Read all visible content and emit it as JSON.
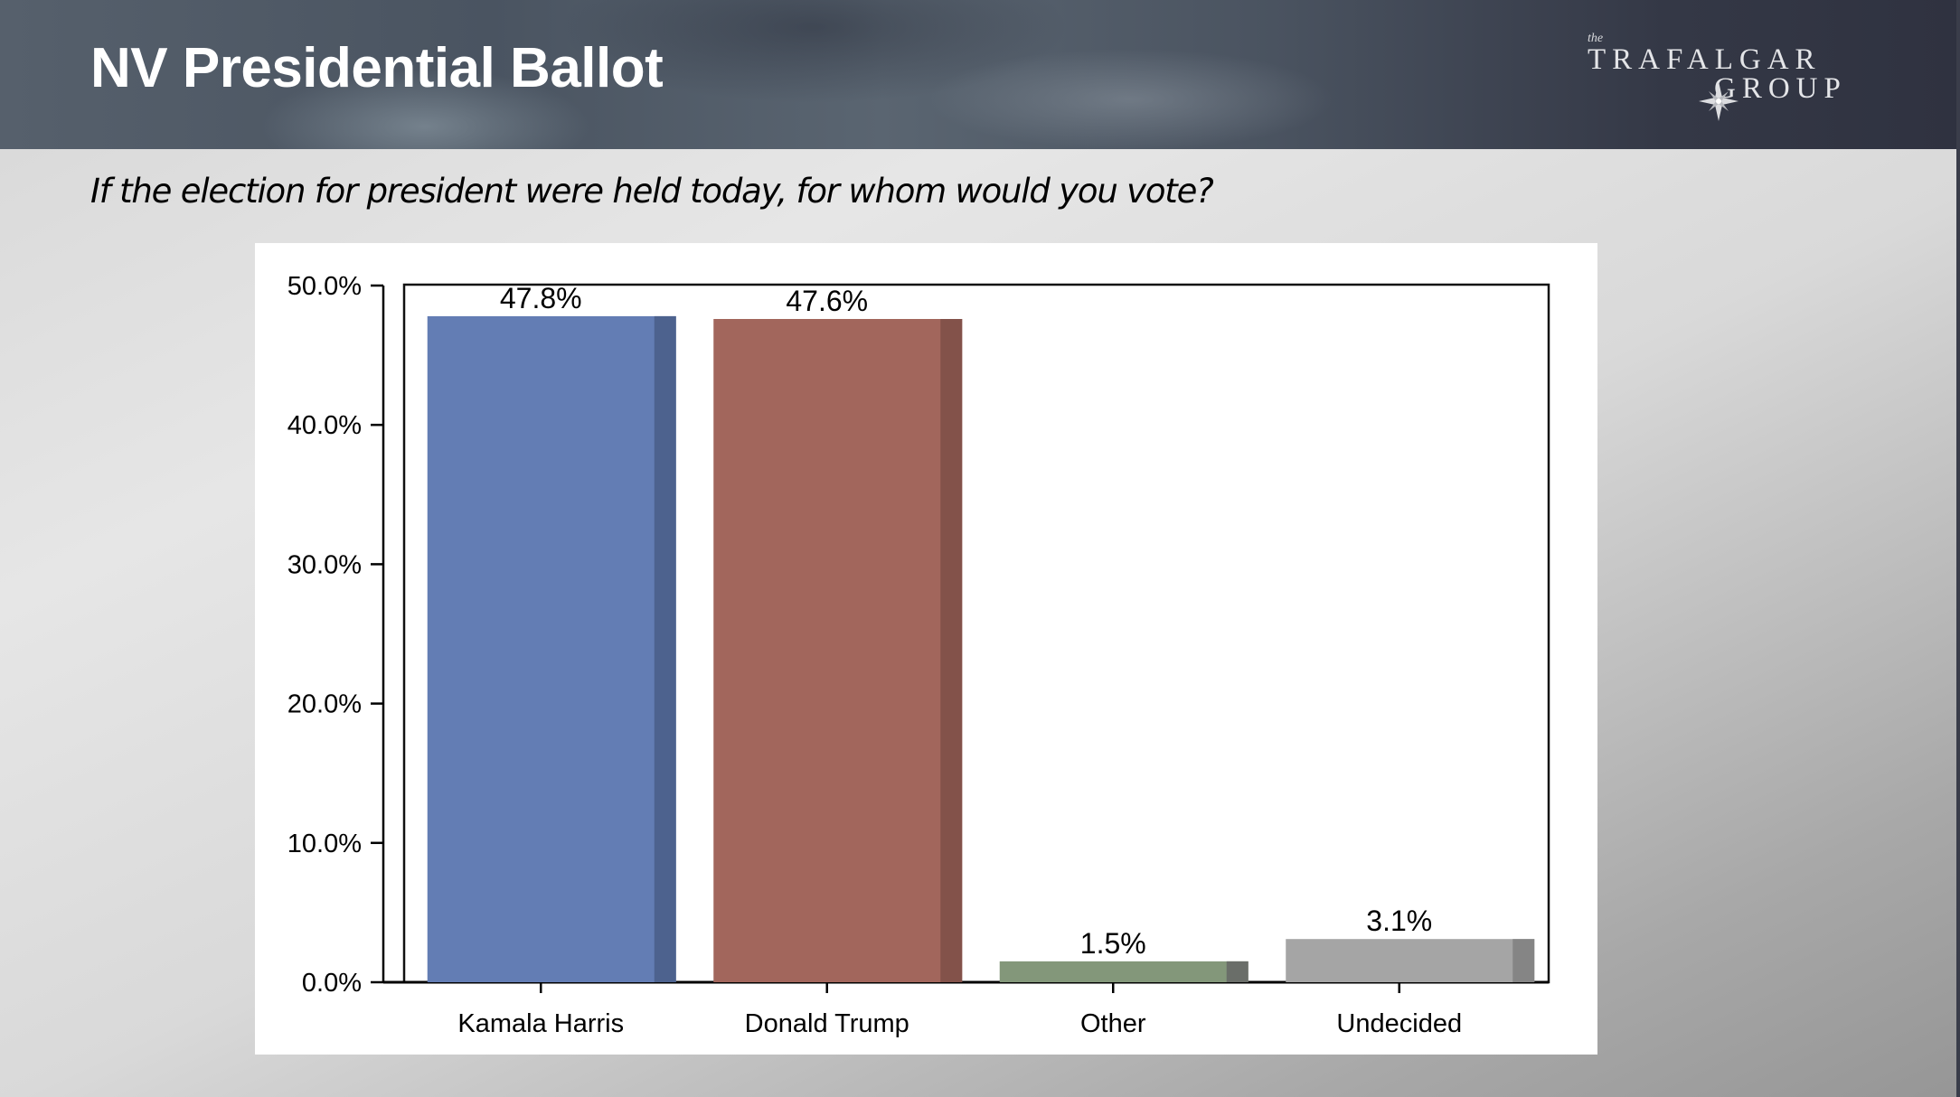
{
  "header": {
    "title": "NV Presidential Ballot",
    "logo": {
      "the": "the",
      "line1": "TRAFALGAR",
      "line2": "GROUP",
      "icon": "compass-star-icon"
    }
  },
  "question": "If the election for president were held today, for whom would you vote?",
  "colors": {
    "harris": "#637db4",
    "harris_shade": "#4d628e",
    "trump": "#a2665c",
    "trump_shade": "#83524a",
    "other": "#83977a",
    "other_shade": "#6a6e69",
    "undecided": "#a5a5a5",
    "undecided_shade": "#858585"
  },
  "chart_data": {
    "type": "bar",
    "title": "",
    "xlabel": "",
    "ylabel": "",
    "categories": [
      "Kamala Harris",
      "Donald Trump",
      "Other",
      "Undecided"
    ],
    "values": [
      47.8,
      47.6,
      1.5,
      3.1
    ],
    "value_labels": [
      "47.8%",
      "47.6%",
      "1.5%",
      "3.1%"
    ],
    "ylim": [
      0,
      50
    ],
    "yticks": [
      0,
      10,
      20,
      30,
      40,
      50
    ],
    "ytick_labels": [
      "0.0%",
      "10.0%",
      "20.0%",
      "30.0%",
      "40.0%",
      "50.0%"
    ],
    "grid": false,
    "legend": "none"
  }
}
